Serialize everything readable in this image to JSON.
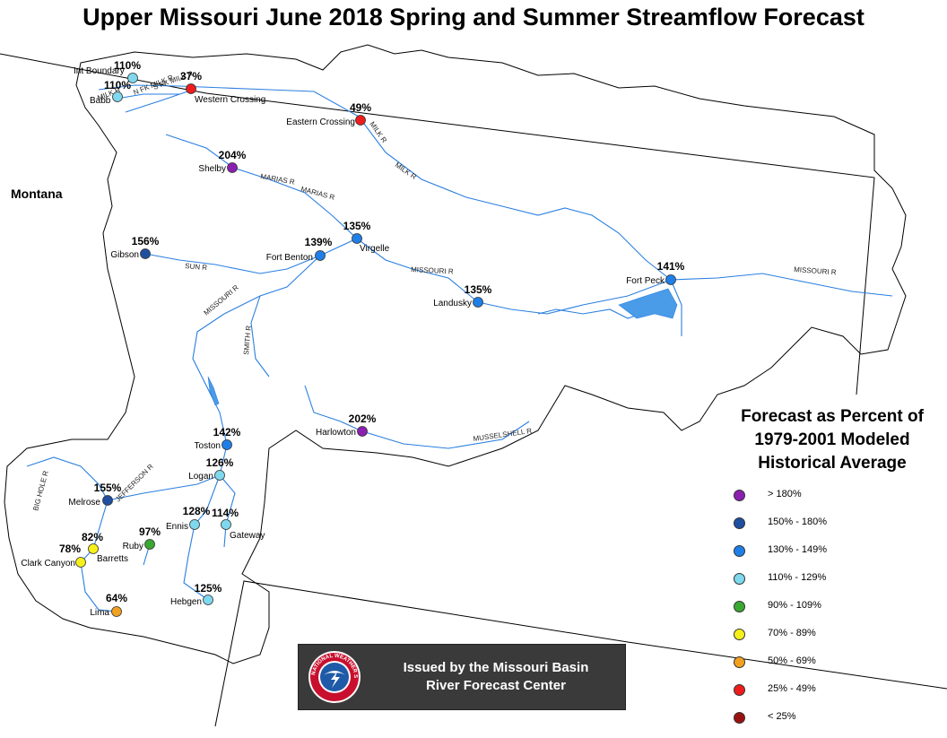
{
  "title": "Upper Missouri June 2018 Spring and Summer Streamflow Forecast",
  "state_label": "Montana",
  "legend": {
    "title_lines": [
      "Forecast as Percent of",
      "1979-2001 Modeled",
      "Historical Average"
    ],
    "items": [
      {
        "label": "> 180%",
        "color": "#8b1fb0"
      },
      {
        "label": "150% - 180%",
        "color": "#1f4fa0"
      },
      {
        "label": "130% - 149%",
        "color": "#1f7fe8"
      },
      {
        "label": "110% - 129%",
        "color": "#7fd8ee"
      },
      {
        "label": "90% - 109%",
        "color": "#3aa832"
      },
      {
        "label": "70% - 89%",
        "color": "#f6f01a"
      },
      {
        "label": "50% - 69%",
        "color": "#f2a020"
      },
      {
        "label": "25% - 49%",
        "color": "#ee1c1c"
      },
      {
        "label": "< 25%",
        "color": "#9a1010"
      }
    ]
  },
  "issued_by": [
    "Issued by the Missouri Basin",
    "River Forecast Center"
  ],
  "nws_logo_text": "NATIONAL WEATHER SERVICE",
  "rivers": [
    "MILK R",
    "N FK MILK R",
    "S FK MILK R",
    "MILK R",
    "MILK R",
    "MARIAS R",
    "MARIAS R",
    "SUN R",
    "MISSOURI R",
    "MISSOURI R",
    "MISSOURI R",
    "SMITH R",
    "MUSSELSHELL R",
    "JEFFERSON R",
    "BIG HOLE R"
  ],
  "stations": [
    {
      "name": "Int Boundary",
      "percent": "110%",
      "color": "#7fd8ee"
    },
    {
      "name": "Babb",
      "percent": "110%",
      "color": "#7fd8ee"
    },
    {
      "name": "Western Crossing",
      "percent": "37%",
      "color": "#ee1c1c"
    },
    {
      "name": "Eastern Crossing",
      "percent": "49%",
      "color": "#ee1c1c"
    },
    {
      "name": "Shelby",
      "percent": "204%",
      "color": "#8b1fb0"
    },
    {
      "name": "Gibson",
      "percent": "156%",
      "color": "#1f4fa0"
    },
    {
      "name": "Virgelle",
      "percent": "135%",
      "color": "#1f7fe8"
    },
    {
      "name": "Fort Benton",
      "percent": "139%",
      "color": "#1f7fe8"
    },
    {
      "name": "Fort Peck",
      "percent": "141%",
      "color": "#1f7fe8"
    },
    {
      "name": "Landusky",
      "percent": "135%",
      "color": "#1f7fe8"
    },
    {
      "name": "Harlowton",
      "percent": "202%",
      "color": "#8b1fb0"
    },
    {
      "name": "Toston",
      "percent": "142%",
      "color": "#1f7fe8"
    },
    {
      "name": "Logan",
      "percent": "126%",
      "color": "#7fd8ee"
    },
    {
      "name": "Melrose",
      "percent": "155%",
      "color": "#1f4fa0"
    },
    {
      "name": "Ennis",
      "percent": "128%",
      "color": "#7fd8ee"
    },
    {
      "name": "Gateway",
      "percent": "114%",
      "color": "#7fd8ee"
    },
    {
      "name": "Ruby",
      "percent": "97%",
      "color": "#3aa832"
    },
    {
      "name": "Barretts",
      "percent": "82%",
      "color": "#f6f01a"
    },
    {
      "name": "Clark Canyon",
      "percent": "78%",
      "color": "#f6f01a"
    },
    {
      "name": "Hebgen",
      "percent": "125%",
      "color": "#7fd8ee"
    },
    {
      "name": "Lima",
      "percent": "64%",
      "color": "#f2a020"
    }
  ]
}
